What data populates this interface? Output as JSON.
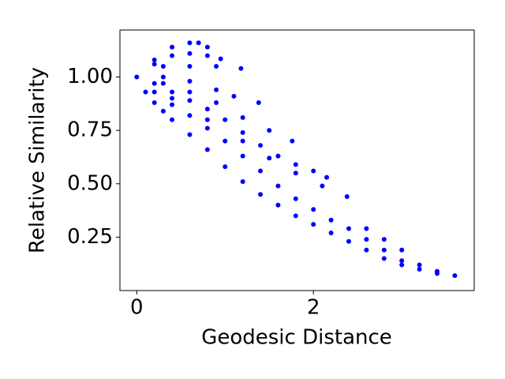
{
  "chart_data": {
    "type": "scatter",
    "xlabel": "Geodesic Distance",
    "ylabel": "Relative Similarity",
    "color": "#0000ff",
    "x": [
      0,
      0.1,
      0.2,
      0.3,
      0.4,
      0.6,
      0.8,
      1.0,
      1.2,
      1.4,
      1.6,
      1.8,
      2.0,
      2.2,
      2.4,
      2.6,
      2.8,
      3.0,
      3.2,
      3.4,
      3.6,
      0.2,
      0.4,
      0.6,
      0.8,
      1.0,
      1.2,
      1.4,
      1.6,
      1.8,
      2.0,
      2.2,
      2.4,
      2.6,
      2.8,
      3.0,
      0.2,
      0.4,
      0.6,
      0.8,
      1.0,
      1.2,
      1.4,
      1.6,
      1.8,
      2.0,
      2.15,
      0.4,
      0.8,
      1.2,
      1.5,
      1.8,
      2.1,
      2.38,
      0.3,
      0.6,
      0.9,
      1.2,
      1.5,
      1.76,
      0.3,
      0.6,
      0.9,
      1.1,
      1.38,
      0.3,
      0.6,
      0.9,
      1.18,
      0.2,
      0.4,
      0.6,
      0.8,
      0.95,
      0.2,
      0.4,
      0.6,
      0.7,
      0.8,
      2.6,
      2.8,
      3.0,
      3.2,
      3.4
    ],
    "y": [
      1.0,
      0.93,
      0.88,
      0.84,
      0.8,
      0.73,
      0.66,
      0.58,
      0.51,
      0.45,
      0.4,
      0.35,
      0.31,
      0.27,
      0.23,
      0.19,
      0.15,
      0.12,
      0.1,
      0.08,
      0.07,
      0.93,
      0.87,
      0.82,
      0.76,
      0.7,
      0.63,
      0.56,
      0.49,
      0.43,
      0.38,
      0.33,
      0.29,
      0.24,
      0.19,
      0.14,
      0.97,
      0.93,
      0.89,
      0.85,
      0.8,
      0.74,
      0.68,
      0.63,
      0.59,
      0.56,
      0.53,
      0.9,
      0.8,
      0.7,
      0.62,
      0.55,
      0.49,
      0.44,
      0.97,
      0.93,
      0.88,
      0.81,
      0.75,
      0.7,
      1.0,
      0.98,
      0.94,
      0.91,
      0.88,
      1.05,
      1.05,
      1.05,
      1.04,
      1.06,
      1.1,
      1.11,
      1.1,
      1.085,
      1.08,
      1.14,
      1.16,
      1.16,
      1.14,
      0.29,
      0.24,
      0.19,
      0.12,
      0.09
    ],
    "xlim": [
      -0.19,
      3.82
    ],
    "ylim": [
      0.0,
      1.22
    ],
    "xticks": [
      0,
      2
    ],
    "yticks": [
      {
        "value": 0.25,
        "label": "0.25"
      },
      {
        "value": 0.5,
        "label": "0.50"
      },
      {
        "value": 0.75,
        "label": "0.75"
      },
      {
        "value": 1.0,
        "label": "1.00"
      }
    ]
  }
}
